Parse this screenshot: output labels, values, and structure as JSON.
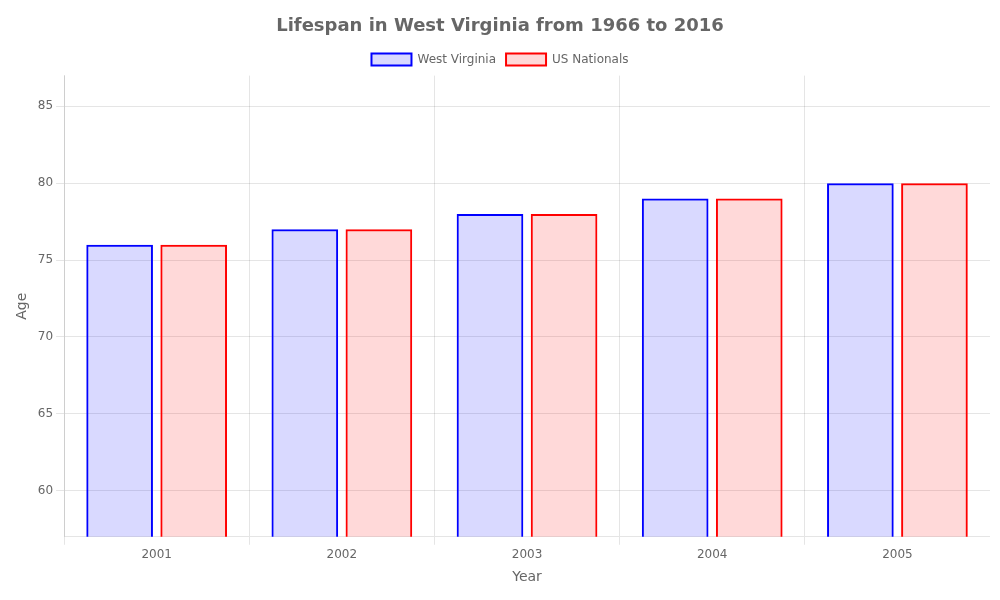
{
  "chart_data": {
    "type": "bar",
    "title": "Lifespan in West Virginia from 1966 to 2016",
    "xlabel": "Year",
    "ylabel": "Age",
    "categories": [
      "2001",
      "2002",
      "2003",
      "2004",
      "2005"
    ],
    "series": [
      {
        "name": "West Virginia",
        "color": "#0000ff",
        "values": [
          76,
          77,
          78,
          79,
          80
        ]
      },
      {
        "name": "US Nationals",
        "color": "#ff0000",
        "values": [
          76,
          77,
          78,
          79,
          80
        ]
      }
    ],
    "ylim": [
      57,
      87
    ],
    "yticks": [
      60,
      65,
      70,
      75,
      80,
      85
    ],
    "grid": true,
    "legend": "top"
  }
}
